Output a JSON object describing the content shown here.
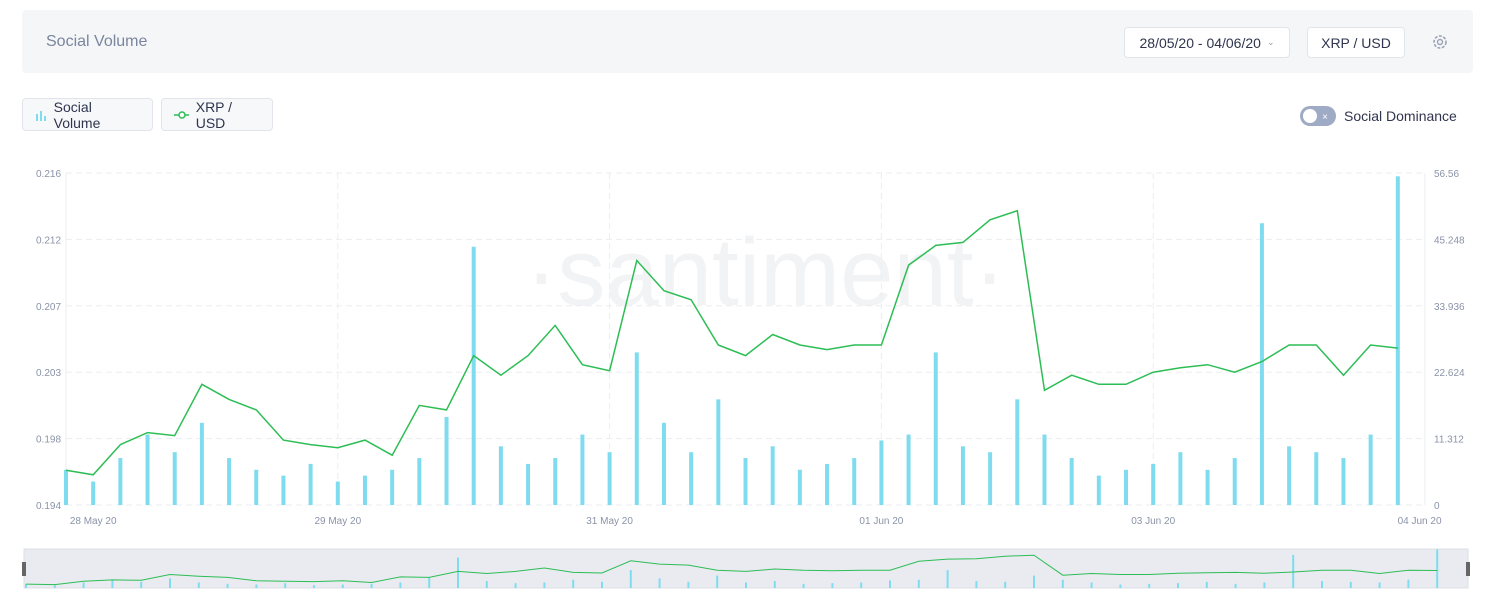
{
  "header": {
    "title": "Social Volume",
    "date_range": "28/05/20 - 04/06/20",
    "pair": "XRP / USD"
  },
  "legend": {
    "items": [
      "Social Volume",
      "XRP / USD"
    ]
  },
  "toggle": {
    "label": "Social Dominance"
  },
  "chart_data": {
    "type": "combo",
    "watermark": "·santiment·",
    "xlim": [
      0,
      50
    ],
    "xticks": [
      {
        "value": 1,
        "label": "28 May 20"
      },
      {
        "value": 10,
        "label": "29 May 20"
      },
      {
        "value": 20,
        "label": "31 May 20"
      },
      {
        "value": 30,
        "label": "01 Jun 20"
      },
      {
        "value": 40,
        "label": "03 Jun 20"
      },
      {
        "value": 49.8,
        "label": "04 Jun 20"
      }
    ],
    "ylim": [
      0.194,
      0.216
    ],
    "yticks": [
      0.194,
      {
        "value": 0.1984,
        "label": "0.198"
      },
      {
        "value": 0.2028,
        "label": "0.203"
      },
      {
        "value": 0.2072,
        "label": "0.207"
      },
      {
        "value": 0.2116,
        "label": "0.212"
      },
      0.216
    ],
    "y2lim": [
      0,
      56.56
    ],
    "y2ticks": [
      0,
      11.312,
      22.624,
      33.936,
      45.248,
      56.56
    ],
    "grid": true,
    "series": [
      {
        "name": "Social Volume",
        "type": "bar",
        "axis": "y2",
        "color": "#7fdcef",
        "values": [
          6,
          4,
          8,
          12,
          9,
          14,
          8,
          6,
          5,
          7,
          4,
          5,
          6,
          8,
          15,
          44,
          10,
          7,
          8,
          12,
          9,
          26,
          14,
          9,
          18,
          8,
          10,
          6,
          7,
          8,
          11,
          12,
          26,
          10,
          9,
          18,
          12,
          8,
          5,
          6,
          7,
          9,
          6,
          8,
          48,
          10,
          9,
          8,
          12,
          56
        ]
      },
      {
        "name": "XRP / USD",
        "type": "line",
        "color": "#2dbd55",
        "values": [
          0.1963,
          0.196,
          0.198,
          0.1988,
          0.1986,
          0.202,
          0.201,
          0.2003,
          0.1983,
          0.198,
          0.1978,
          0.1983,
          0.1973,
          0.2006,
          0.2003,
          0.2039,
          0.2026,
          0.2039,
          0.2059,
          0.2033,
          0.2029,
          0.2102,
          0.2082,
          0.2076,
          0.2046,
          0.2039,
          0.2053,
          0.2046,
          0.2043,
          0.2046,
          0.2046,
          0.2099,
          0.2112,
          0.2114,
          0.2129,
          0.2135,
          0.2016,
          0.2026,
          0.202,
          0.202,
          0.2028,
          0.2031,
          0.2033,
          0.2028,
          0.2035,
          0.2046,
          0.2046,
          0.2026,
          0.2046,
          0.2044
        ]
      }
    ]
  }
}
